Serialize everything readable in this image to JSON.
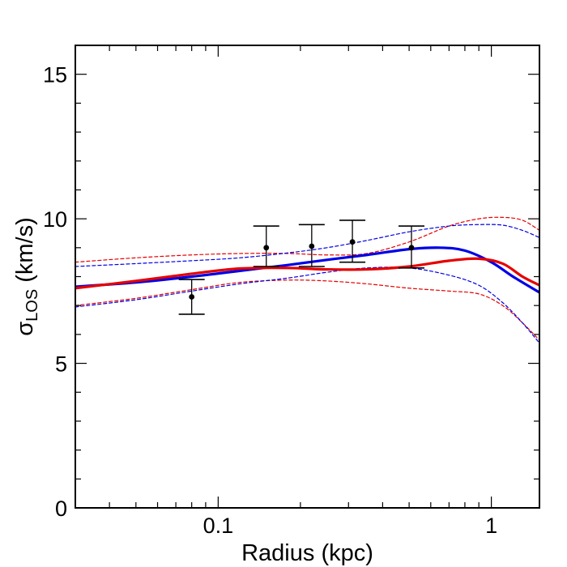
{
  "chart_data": {
    "type": "line",
    "title": "",
    "xlabel": "Radius (kpc)",
    "ylabel_symbol": "σ",
    "ylabel_subscript": "LOS",
    "ylabel_units": " (km/s)",
    "xscale": "log",
    "xlim": [
      0.03,
      1.5
    ],
    "ylim": [
      0,
      16
    ],
    "x_tick_labels": [
      {
        "value": 0.1,
        "label": "0.1"
      },
      {
        "value": 1,
        "label": "1"
      }
    ],
    "y_tick_labels": [
      {
        "value": 0,
        "label": "0"
      },
      {
        "value": 5,
        "label": "5"
      },
      {
        "value": 10,
        "label": "10"
      },
      {
        "value": 15,
        "label": "15"
      }
    ],
    "observations": {
      "name": "data",
      "x": [
        0.08,
        0.15,
        0.22,
        0.31,
        0.51
      ],
      "y": [
        7.3,
        9.0,
        9.05,
        9.2,
        9.0
      ],
      "err_low": [
        6.7,
        8.35,
        8.35,
        8.5,
        8.3
      ],
      "err_high": [
        7.9,
        9.75,
        9.8,
        9.95,
        9.75
      ]
    },
    "series": [
      {
        "name": "red-model",
        "color": "#e60000",
        "style": "solid",
        "x": [
          0.03,
          0.05,
          0.08,
          0.12,
          0.18,
          0.25,
          0.35,
          0.5,
          0.7,
          0.9,
          1.1,
          1.3,
          1.5
        ],
        "y": [
          7.6,
          7.85,
          8.1,
          8.28,
          8.3,
          8.25,
          8.25,
          8.35,
          8.55,
          8.62,
          8.45,
          8.0,
          7.7
        ]
      },
      {
        "name": "blue-model",
        "color": "#0000e6",
        "style": "solid",
        "x": [
          0.03,
          0.05,
          0.08,
          0.12,
          0.18,
          0.25,
          0.35,
          0.5,
          0.65,
          0.8,
          1.0,
          1.2,
          1.5
        ],
        "y": [
          7.65,
          7.8,
          8.0,
          8.2,
          8.4,
          8.58,
          8.75,
          8.95,
          9.0,
          8.9,
          8.5,
          8.0,
          7.45
        ]
      },
      {
        "name": "red-upper",
        "color": "#e60000",
        "style": "dashed",
        "x": [
          0.03,
          0.05,
          0.08,
          0.12,
          0.18,
          0.25,
          0.35,
          0.5,
          0.7,
          0.9,
          1.1,
          1.3,
          1.5
        ],
        "y": [
          8.5,
          8.65,
          8.75,
          8.8,
          8.8,
          8.75,
          8.8,
          9.2,
          9.75,
          10.0,
          10.05,
          9.95,
          9.6
        ]
      },
      {
        "name": "red-lower",
        "color": "#e60000",
        "style": "dashed",
        "x": [
          0.03,
          0.05,
          0.08,
          0.12,
          0.18,
          0.25,
          0.35,
          0.5,
          0.7,
          0.9,
          1.1,
          1.3,
          1.5
        ],
        "y": [
          7.0,
          7.25,
          7.55,
          7.8,
          7.88,
          7.85,
          7.75,
          7.6,
          7.5,
          7.4,
          7.0,
          6.4,
          5.8
        ]
      },
      {
        "name": "blue-upper",
        "color": "#0000e6",
        "style": "dashed",
        "x": [
          0.03,
          0.05,
          0.08,
          0.12,
          0.18,
          0.25,
          0.35,
          0.5,
          0.7,
          0.9,
          1.1,
          1.3,
          1.5
        ],
        "y": [
          8.35,
          8.45,
          8.55,
          8.65,
          8.82,
          9.0,
          9.25,
          9.55,
          9.75,
          9.8,
          9.78,
          9.6,
          9.35
        ]
      },
      {
        "name": "blue-lower",
        "color": "#0000e6",
        "style": "dashed",
        "x": [
          0.03,
          0.05,
          0.08,
          0.12,
          0.18,
          0.25,
          0.35,
          0.5,
          0.7,
          0.9,
          1.1,
          1.3,
          1.5
        ],
        "y": [
          6.95,
          7.2,
          7.5,
          7.75,
          7.95,
          8.15,
          8.3,
          8.3,
          8.05,
          7.7,
          7.1,
          6.4,
          5.7
        ]
      }
    ]
  }
}
